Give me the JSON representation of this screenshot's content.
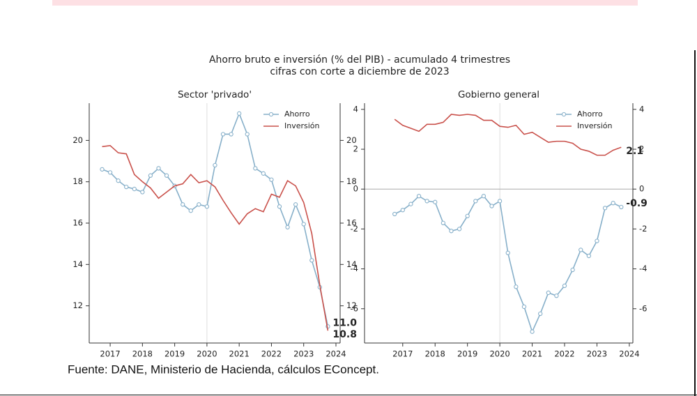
{
  "title": "Ahorro bruto e inversión (% del PIB) - acumulado 4 trimestres",
  "subtitle": "cifras con corte a diciembre de 2023",
  "source": "Fuente: DANE, Ministerio de Hacienda, cálculos EConcept.",
  "chart_data": [
    {
      "type": "line",
      "title": "Sector 'privado'",
      "x": [
        2016.75,
        2017.0,
        2017.25,
        2017.5,
        2017.75,
        2018.0,
        2018.25,
        2018.5,
        2018.75,
        2019.0,
        2019.25,
        2019.5,
        2019.75,
        2020.0,
        2020.25,
        2020.5,
        2020.75,
        2021.0,
        2021.25,
        2021.5,
        2021.75,
        2022.0,
        2022.25,
        2022.5,
        2022.75,
        2023.0,
        2023.25,
        2023.5,
        2023.75
      ],
      "series": [
        {
          "name": "Ahorro",
          "color": "#86afc9",
          "label_color": "#2f77a8",
          "markers": true,
          "values": [
            18.6,
            18.45,
            18.05,
            17.75,
            17.65,
            17.5,
            18.3,
            18.65,
            18.3,
            17.8,
            16.9,
            16.6,
            16.9,
            16.8,
            18.8,
            20.3,
            20.3,
            21.3,
            20.3,
            18.65,
            18.4,
            18.1,
            16.8,
            15.8,
            16.9,
            15.95,
            14.2,
            12.9,
            11.0
          ],
          "value_labels": [
            null,
            null,
            null,
            null,
            null,
            null,
            null,
            null,
            null,
            null,
            null,
            null,
            null,
            null,
            null,
            null,
            null,
            null,
            null,
            null,
            null,
            null,
            null,
            null,
            null,
            null,
            null,
            null,
            "11.0"
          ]
        },
        {
          "name": "Inversión",
          "color": "#c9504a",
          "label_color": "#c0302b",
          "markers": false,
          "values": [
            19.7,
            19.75,
            19.4,
            19.35,
            18.35,
            18.0,
            17.7,
            17.2,
            17.5,
            17.8,
            17.9,
            18.35,
            17.95,
            18.05,
            17.75,
            17.1,
            16.5,
            15.95,
            16.45,
            16.7,
            16.55,
            17.4,
            17.25,
            18.05,
            17.8,
            17.0,
            15.5,
            13.0,
            10.8
          ],
          "value_labels": [
            null,
            null,
            null,
            null,
            null,
            null,
            null,
            null,
            null,
            null,
            null,
            null,
            null,
            null,
            null,
            null,
            null,
            null,
            null,
            null,
            null,
            null,
            null,
            null,
            null,
            null,
            null,
            null,
            "10.8"
          ]
        }
      ],
      "xlim": [
        2016.35,
        2024.13
      ],
      "xticks": [
        2017,
        2018,
        2019,
        2020,
        2021,
        2022,
        2023,
        2024
      ],
      "ylim": [
        10.2,
        21.8
      ],
      "yticks": [
        12,
        14,
        16,
        18,
        20
      ],
      "reference_lines": {
        "x": [
          2020
        ],
        "y": []
      },
      "legend": "upper right"
    },
    {
      "type": "line",
      "title": "Gobierno general",
      "x": [
        2016.75,
        2017.0,
        2017.25,
        2017.5,
        2017.75,
        2018.0,
        2018.25,
        2018.5,
        2018.75,
        2019.0,
        2019.25,
        2019.5,
        2019.75,
        2020.0,
        2020.25,
        2020.5,
        2020.75,
        2021.0,
        2021.25,
        2021.5,
        2021.75,
        2022.0,
        2022.25,
        2022.5,
        2022.75,
        2023.0,
        2023.25,
        2023.5,
        2023.75
      ],
      "series": [
        {
          "name": "Ahorro",
          "color": "#86afc9",
          "label_color": "#2f77a8",
          "markers": true,
          "values": [
            -1.25,
            -1.05,
            -0.75,
            -0.35,
            -0.6,
            -0.65,
            -1.7,
            -2.1,
            -2.0,
            -1.35,
            -0.6,
            -0.35,
            -0.85,
            -0.6,
            -3.2,
            -4.9,
            -5.9,
            -7.15,
            -6.25,
            -5.2,
            -5.35,
            -4.85,
            -4.05,
            -3.05,
            -3.35,
            -2.6,
            -0.95,
            -0.7,
            -0.9
          ],
          "value_labels": [
            null,
            null,
            null,
            null,
            null,
            null,
            null,
            null,
            null,
            null,
            null,
            null,
            null,
            null,
            null,
            null,
            null,
            null,
            null,
            null,
            null,
            null,
            null,
            null,
            null,
            null,
            null,
            null,
            "-0.9"
          ]
        },
        {
          "name": "Inversión",
          "color": "#c9504a",
          "label_color": "#c0302b",
          "markers": false,
          "values": [
            3.5,
            3.2,
            3.05,
            2.9,
            3.25,
            3.25,
            3.35,
            3.75,
            3.7,
            3.75,
            3.7,
            3.45,
            3.45,
            3.15,
            3.1,
            3.2,
            2.75,
            2.85,
            2.6,
            2.35,
            2.4,
            2.4,
            2.3,
            2.0,
            1.9,
            1.7,
            1.7,
            1.95,
            2.1
          ],
          "value_labels": [
            null,
            null,
            null,
            null,
            null,
            null,
            null,
            null,
            null,
            null,
            null,
            null,
            null,
            null,
            null,
            null,
            null,
            null,
            null,
            null,
            null,
            null,
            null,
            null,
            null,
            null,
            null,
            null,
            "2.1"
          ]
        }
      ],
      "xlim": [
        2015.82,
        2024.11
      ],
      "xticks": [
        2017,
        2018,
        2019,
        2020,
        2021,
        2022,
        2023,
        2024
      ],
      "ylim": [
        -7.72,
        4.31
      ],
      "yticks": [
        -6,
        -4,
        -2,
        0,
        2,
        4
      ],
      "reference_lines": {
        "x": [
          2020
        ],
        "y": [
          0
        ]
      },
      "legend": "upper right"
    }
  ]
}
